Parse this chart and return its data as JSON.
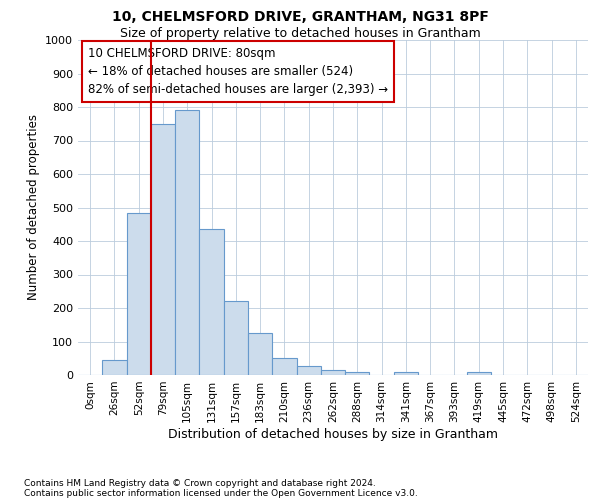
{
  "title": "10, CHELMSFORD DRIVE, GRANTHAM, NG31 8PF",
  "subtitle": "Size of property relative to detached houses in Grantham",
  "xlabel": "Distribution of detached houses by size in Grantham",
  "ylabel": "Number of detached properties",
  "bar_color": "#ccdcec",
  "bar_edge_color": "#6699cc",
  "categories": [
    "0sqm",
    "26sqm",
    "52sqm",
    "79sqm",
    "105sqm",
    "131sqm",
    "157sqm",
    "183sqm",
    "210sqm",
    "236sqm",
    "262sqm",
    "288sqm",
    "314sqm",
    "341sqm",
    "367sqm",
    "393sqm",
    "419sqm",
    "445sqm",
    "472sqm",
    "498sqm",
    "524sqm"
  ],
  "values": [
    0,
    45,
    485,
    750,
    790,
    435,
    220,
    125,
    50,
    28,
    15,
    10,
    0,
    8,
    0,
    0,
    8,
    0,
    0,
    0,
    0
  ],
  "ylim": [
    0,
    1000
  ],
  "yticks": [
    0,
    100,
    200,
    300,
    400,
    500,
    600,
    700,
    800,
    900,
    1000
  ],
  "property_line_index": 3,
  "property_line_color": "#cc0000",
  "annotation_text": "10 CHELMSFORD DRIVE: 80sqm\n← 18% of detached houses are smaller (524)\n82% of semi-detached houses are larger (2,393) →",
  "annotation_box_color": "#ffffff",
  "annotation_box_edge": "#cc0000",
  "footnote1": "Contains HM Land Registry data © Crown copyright and database right 2024.",
  "footnote2": "Contains public sector information licensed under the Open Government Licence v3.0.",
  "background_color": "#ffffff",
  "grid_color": "#bbccdd"
}
